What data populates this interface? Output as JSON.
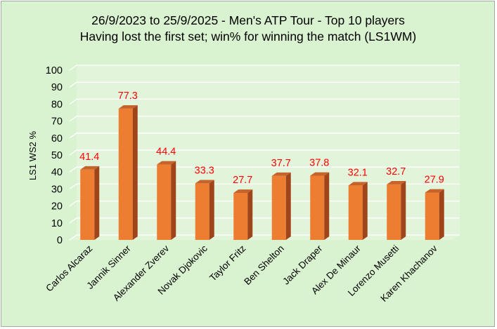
{
  "chart_data": {
    "type": "bar",
    "title": "26/9/2023 to 25/9/2025 - Men's ATP Tour - Top 10 players",
    "subtitle": "Having lost the first set; win% for winning the match (LS1WM)",
    "xlabel": "",
    "ylabel": "LS1 WS2 %",
    "ylim": [
      0,
      100
    ],
    "yticks": [
      0,
      10,
      20,
      30,
      40,
      50,
      60,
      70,
      80,
      90,
      100
    ],
    "grid": true,
    "legend": "none",
    "categories": [
      "Carlos Alcaraz",
      "Jannik Sinner",
      "Alexander Zverev",
      "Novak Djokovic",
      "Taylor Fritz",
      "Ben Shelton",
      "Jack Draper",
      "Alex De Minaur",
      "Lorenzo Musetti",
      "Karen Khachanov"
    ],
    "values": [
      41.4,
      77.3,
      44.4,
      33.3,
      27.7,
      37.7,
      37.8,
      32.1,
      32.7,
      27.9
    ],
    "data_labels": [
      "41.4",
      "77.3",
      "44.4",
      "33.3",
      "27.7",
      "37.7",
      "37.8",
      "32.1",
      "32.7",
      "27.9"
    ],
    "colors": {
      "background": "#d9f2d0",
      "bar_front": "#ed7d31",
      "bar_side": "#a0451a",
      "bar_top": "#c5632a",
      "data_label": "#ff0000",
      "gridline": "#ffffff",
      "wall": "#e2f5db"
    }
  }
}
